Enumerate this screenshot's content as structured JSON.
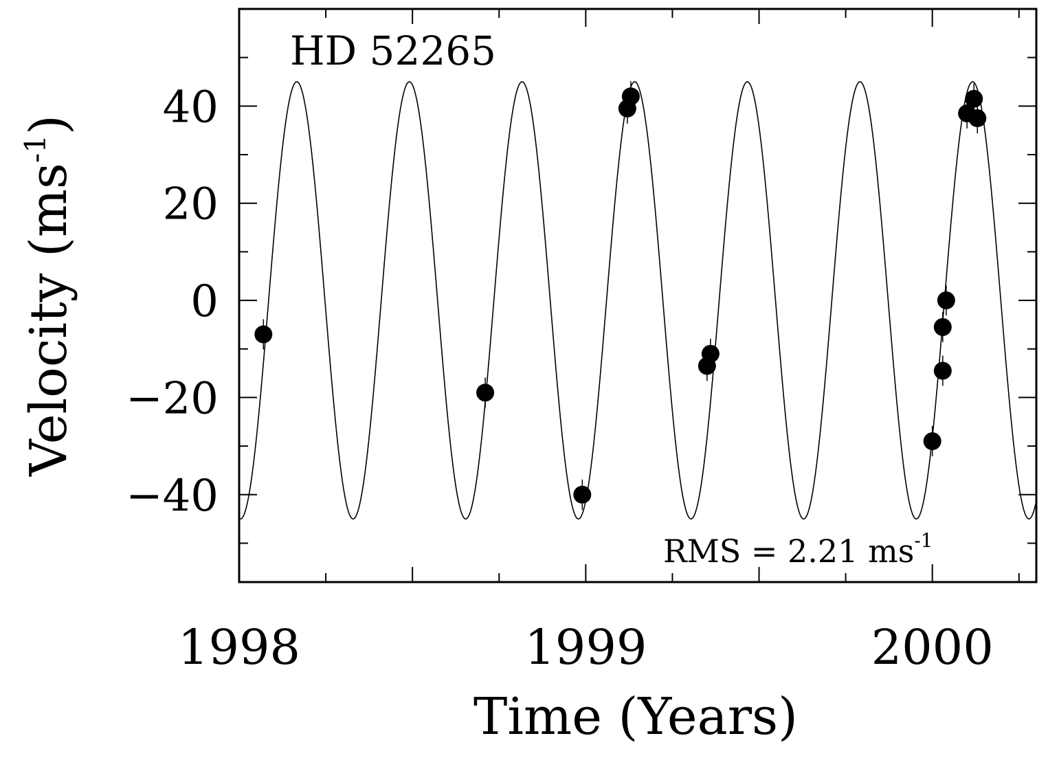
{
  "chart_data": {
    "type": "scatter",
    "title": "",
    "annotation": "HD 52265",
    "rms_text": "RMS = 2.21 ms",
    "rms_sup": "-1",
    "xlabel": "Time (Years)",
    "ylabel": "Velocity (ms",
    "ylabel_sup": "-1",
    "ylabel_close": ")",
    "xlim": [
      1998.0,
      2000.3
    ],
    "ylim": [
      -58,
      60
    ],
    "x_ticks": [
      {
        "value": 1998,
        "label": "1998"
      },
      {
        "value": 1999,
        "label": "1999"
      },
      {
        "value": 2000,
        "label": "2000"
      }
    ],
    "y_ticks": [
      {
        "value": 40,
        "label": "40"
      },
      {
        "value": 20,
        "label": "20"
      },
      {
        "value": 0,
        "label": "0"
      },
      {
        "value": -20,
        "label": "−20"
      },
      {
        "value": -40,
        "label": "−40"
      }
    ],
    "grid": false,
    "model_curve": {
      "amplitude": 45,
      "period_years": 0.325,
      "phase_zero_year": 1998.085
    },
    "series": [
      {
        "points": [
          {
            "x": 1998.07,
            "y": -7
          },
          {
            "x": 1998.71,
            "y": -19
          },
          {
            "x": 1998.99,
            "y": -40
          },
          {
            "x": 1999.12,
            "y": 39.5
          },
          {
            "x": 1999.13,
            "y": 42
          },
          {
            "x": 1999.35,
            "y": -13.5
          },
          {
            "x": 1999.36,
            "y": -11
          },
          {
            "x": 2000.0,
            "y": -29
          },
          {
            "x": 2000.03,
            "y": -14.5
          },
          {
            "x": 2000.03,
            "y": -5.5
          },
          {
            "x": 2000.04,
            "y": 0
          },
          {
            "x": 2000.1,
            "y": 38.5
          },
          {
            "x": 2000.12,
            "y": 41.5
          },
          {
            "x": 2000.13,
            "y": 37.5
          }
        ]
      }
    ]
  }
}
